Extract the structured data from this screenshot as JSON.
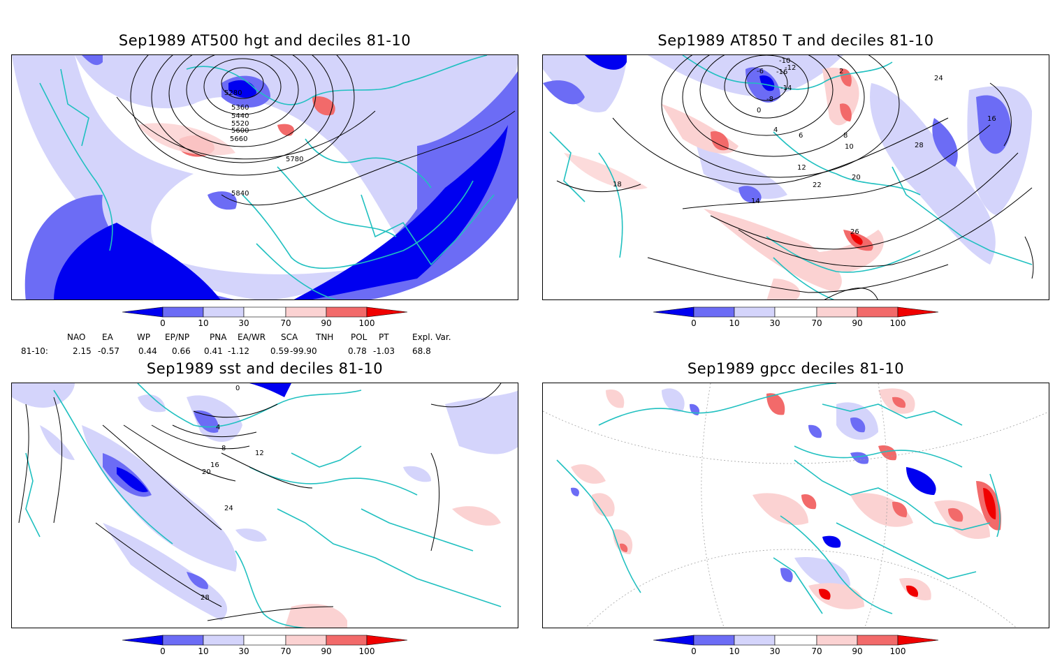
{
  "panels": [
    {
      "title": "Sep1989 AT500 hgt and deciles 81-10",
      "contour_labels": [
        "5280",
        "5360",
        "5440",
        "5520",
        "5600",
        "5660",
        "5780",
        "5840"
      ]
    },
    {
      "title": "Sep1989 AT850 T and deciles 81-10",
      "contour_labels": [
        "-10",
        "-12",
        "-14",
        "-16",
        "-8",
        "-6",
        "0",
        "2",
        "4",
        "6",
        "8",
        "10",
        "12",
        "14",
        "16",
        "18",
        "20",
        "22",
        "24",
        "26",
        "28"
      ]
    },
    {
      "title": "Sep1989 sst and deciles 81-10",
      "contour_labels": [
        "0",
        "4",
        "8",
        "12",
        "16",
        "20",
        "24",
        "28"
      ]
    },
    {
      "title": "Sep1989 gpcc deciles 81-10",
      "contour_labels": []
    }
  ],
  "colorbar": {
    "ticks": [
      "0",
      "10",
      "30",
      "70",
      "90",
      "100"
    ],
    "colors": [
      "#0000f0",
      "#6c6cf5",
      "#d4d4fb",
      "#ffffff",
      "#fbd2d2",
      "#f26a6a",
      "#f00000"
    ]
  },
  "indices": {
    "headers": [
      "NAO",
      "EA",
      "WP",
      "EP/NP",
      "PNA",
      "EA/WR",
      "SCA",
      "TNH",
      "POL",
      "PT",
      "Expl. Var."
    ],
    "row_label": "81-10:",
    "values": [
      "2.15",
      "-0.57",
      "0.44",
      "0.66",
      "0.41",
      "-1.12",
      "0.59",
      "-99.90",
      "0.78",
      "-1.03",
      "68.8"
    ]
  },
  "colors": {
    "coast": "#20c0c0",
    "strong_blue": "#0000f0",
    "mid_blue": "#6c6cf5",
    "light_blue": "#d4d4fb",
    "light_red": "#fbd2d2",
    "mid_red": "#f26a6a",
    "strong_red": "#f00000"
  }
}
